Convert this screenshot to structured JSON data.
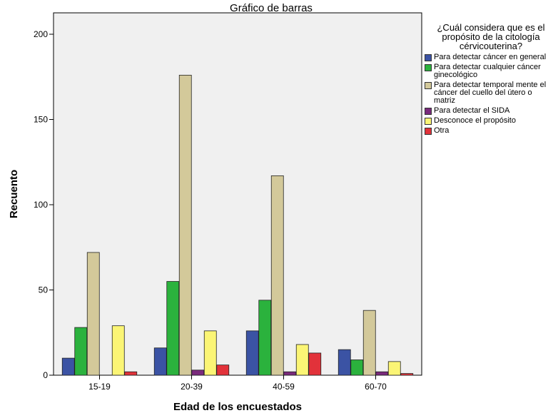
{
  "chart_data": {
    "type": "bar",
    "title": "Gráfico de barras",
    "xlabel": "Edad de los encuestados",
    "ylabel": "Recuento",
    "ylim": [
      0,
      210
    ],
    "yticks": [
      0,
      50,
      100,
      150,
      200
    ],
    "categories": [
      "15-19",
      "20-39",
      "40-59",
      "60-70"
    ],
    "legend_title": "¿Cuál considera que es el propósito de la citología cérvicouterina?",
    "legend_position": "right",
    "grid": false,
    "series": [
      {
        "name": "Para detectar cáncer en general",
        "color": "#3b53a4",
        "values": [
          10,
          16,
          26,
          15
        ]
      },
      {
        "name": "Para detectar cualquier cáncer ginecológico",
        "color": "#2bb23d",
        "values": [
          28,
          55,
          44,
          9
        ]
      },
      {
        "name": "Para detectar temporal mente el cáncer del cuello del útero o matriz",
        "color": "#d3c99a",
        "values": [
          72,
          176,
          117,
          38
        ]
      },
      {
        "name": "Para detectar el SIDA",
        "color": "#7a2a7c",
        "values": [
          0,
          3,
          2,
          2
        ]
      },
      {
        "name": "Desconoce el propósito",
        "color": "#fbf575",
        "values": [
          29,
          26,
          18,
          8
        ]
      },
      {
        "name": "Otra",
        "color": "#e2323a",
        "values": [
          2,
          6,
          13,
          1
        ]
      }
    ]
  }
}
